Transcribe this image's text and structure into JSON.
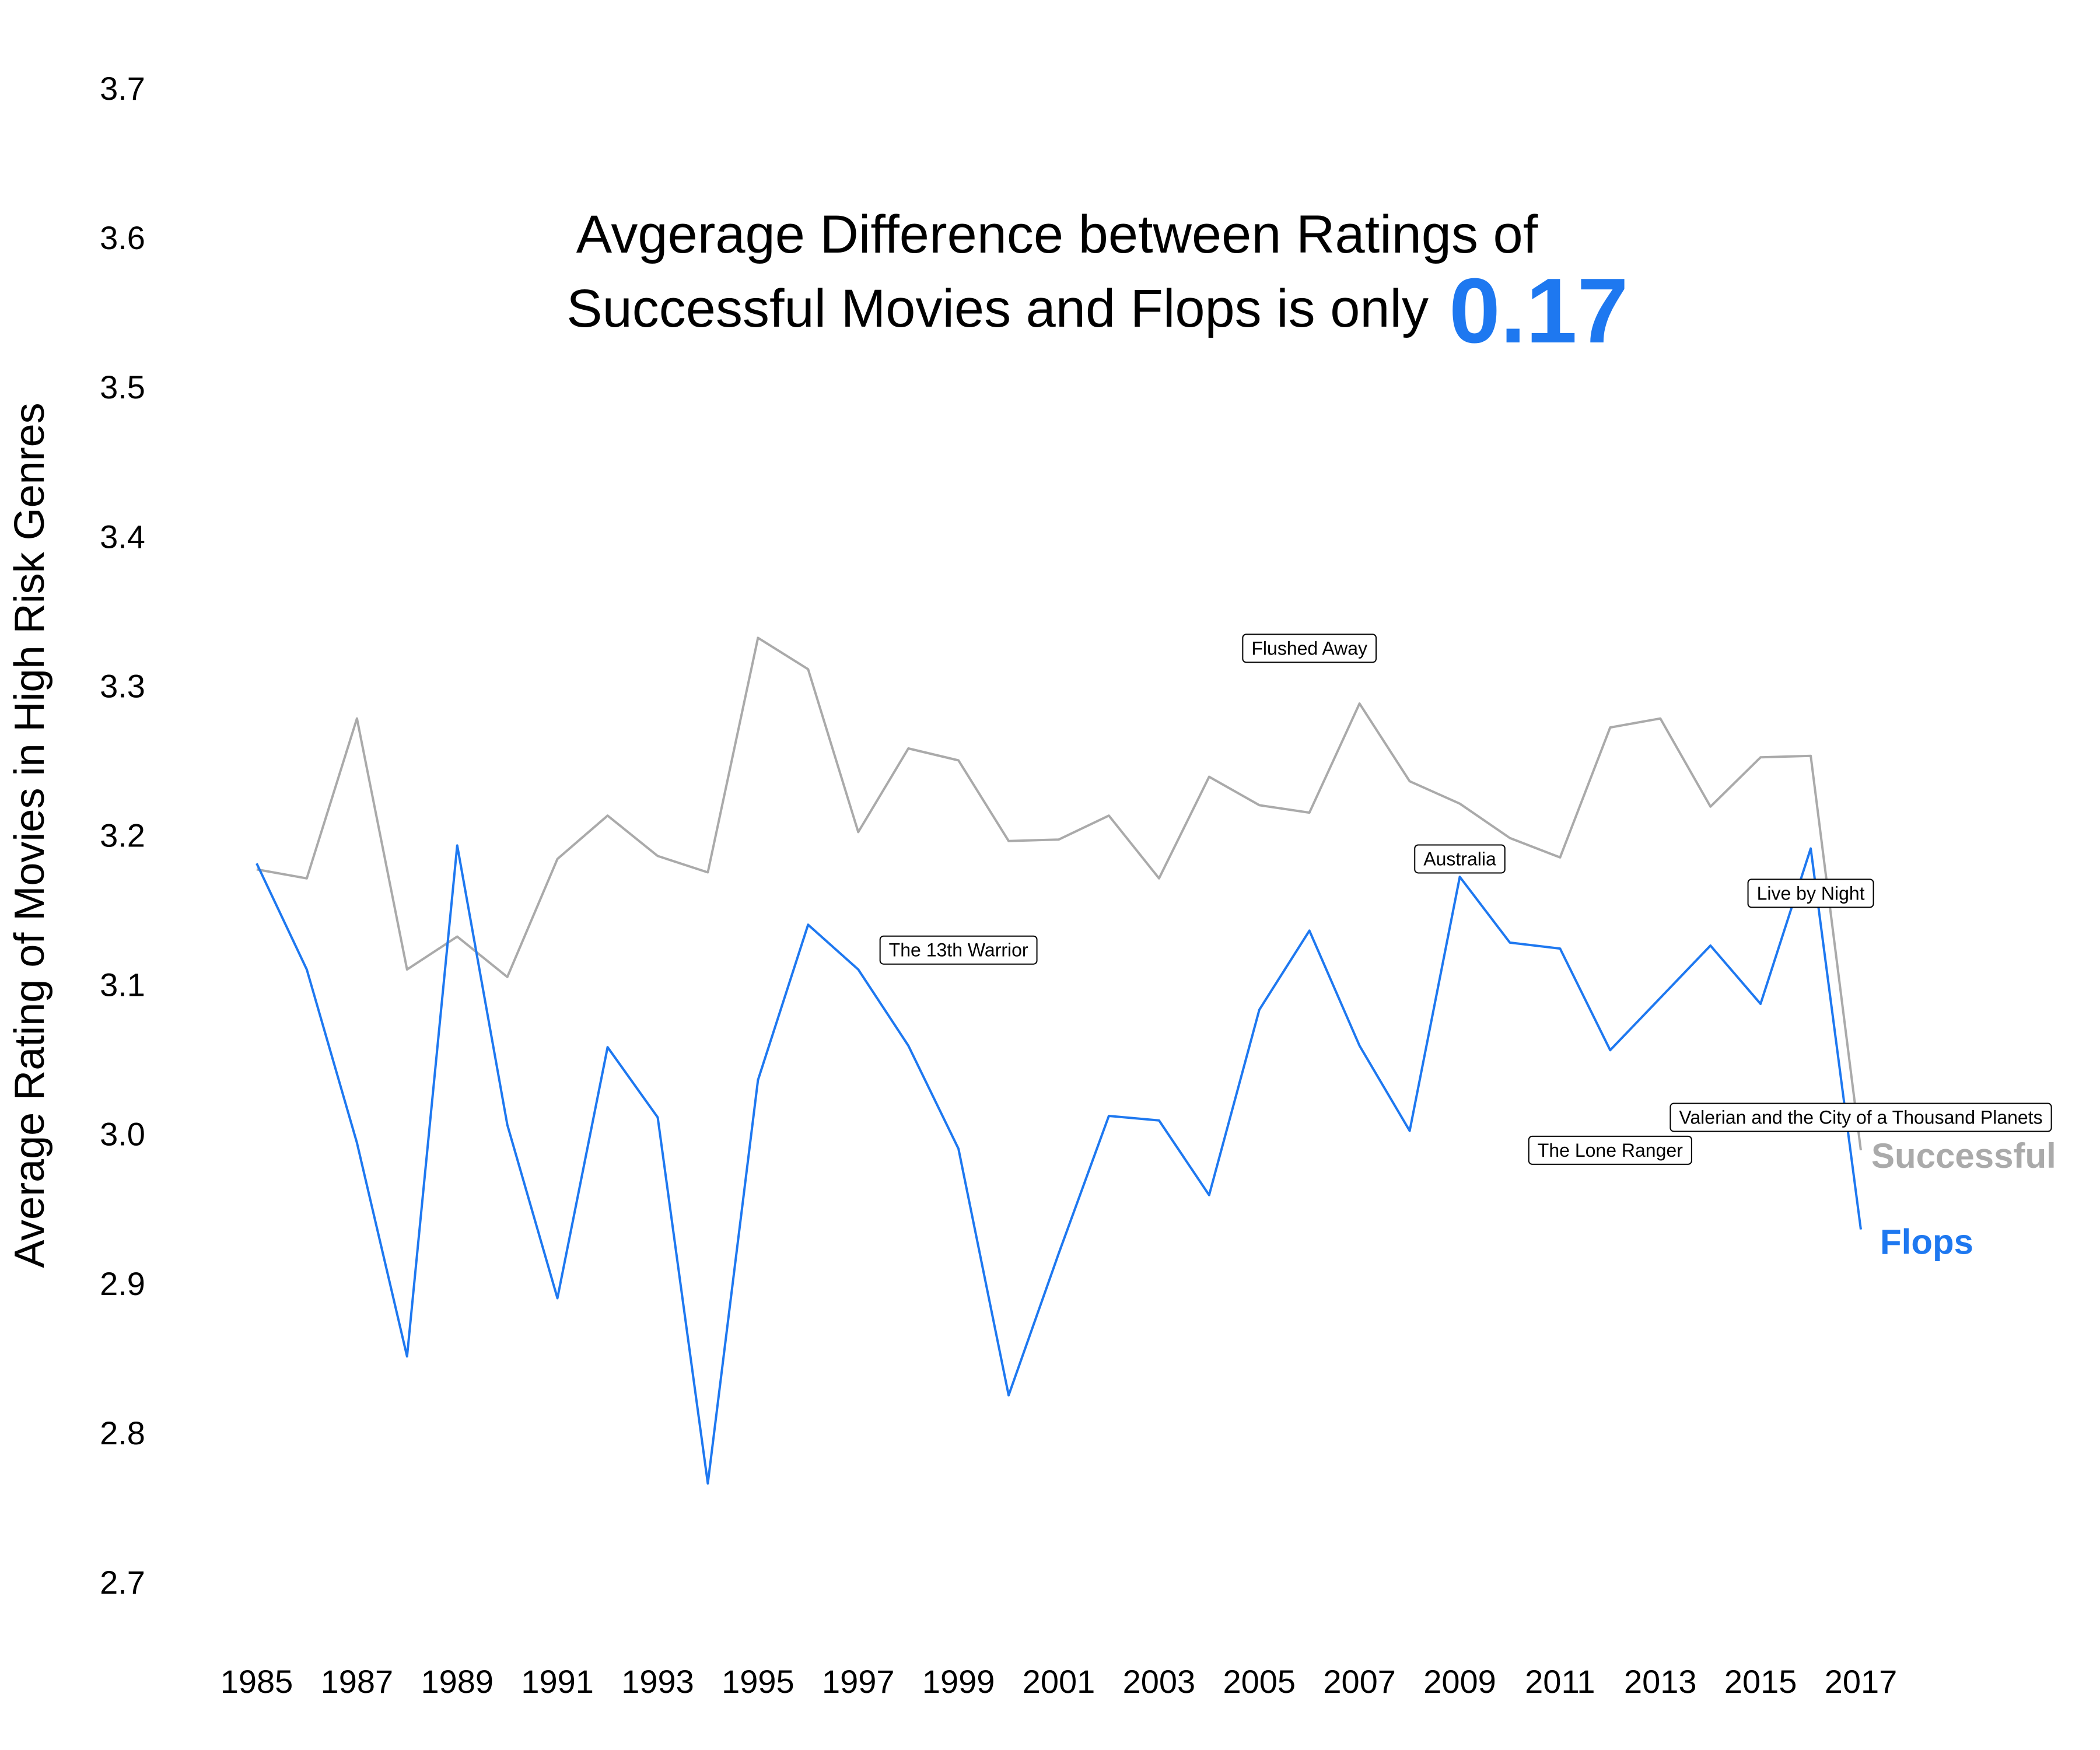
{
  "chart_data": {
    "type": "line",
    "title_lines": [
      "Avgerage Difference between Ratings of",
      "Successful Movies and Flops is only"
    ],
    "title_highlight": "0.17",
    "xlabel": "",
    "ylabel": "Average Rating of Movies in High Risk Genres",
    "xlim": [
      1985,
      2017
    ],
    "ylim": [
      2.7,
      3.7
    ],
    "x_ticks": [
      "1985",
      "1987",
      "1989",
      "1991",
      "1993",
      "1995",
      "1997",
      "1999",
      "2001",
      "2003",
      "2005",
      "2007",
      "2009",
      "2011",
      "2013",
      "2015",
      "2017"
    ],
    "y_ticks": [
      "2.7",
      "2.8",
      "2.9",
      "3.0",
      "3.1",
      "3.2",
      "3.3",
      "3.4",
      "3.5",
      "3.6",
      "3.7"
    ],
    "grid": false,
    "x": [
      1985,
      1986,
      1987,
      1988,
      1989,
      1990,
      1991,
      1992,
      1993,
      1994,
      1995,
      1996,
      1997,
      1998,
      1999,
      2000,
      2001,
      2002,
      2003,
      2004,
      2005,
      2006,
      2007,
      2008,
      2009,
      2010,
      2011,
      2012,
      2013,
      2014,
      2015,
      2016,
      2017
    ],
    "series": [
      {
        "name": "Successful",
        "color": "#aaaaaa",
        "values": [
          3.177,
          3.171,
          3.278,
          3.11,
          3.132,
          3.105,
          3.184,
          3.213,
          3.186,
          3.175,
          3.332,
          3.311,
          3.202,
          3.258,
          3.25,
          3.196,
          3.197,
          3.213,
          3.171,
          3.239,
          3.22,
          3.215,
          3.288,
          3.236,
          3.221,
          3.198,
          3.185,
          3.272,
          3.278,
          3.219,
          3.252,
          3.253,
          2.989
        ]
      },
      {
        "name": "Flops",
        "color": "#1e78f0",
        "values": [
          3.181,
          3.11,
          2.994,
          2.851,
          3.193,
          3.006,
          2.89,
          3.058,
          3.011,
          2.766,
          3.036,
          3.14,
          3.11,
          3.059,
          2.99,
          2.825,
          2.92,
          3.012,
          3.009,
          2.959,
          3.083,
          3.136,
          3.059,
          3.002,
          3.172,
          3.128,
          3.124,
          3.056,
          3.091,
          3.126,
          3.087,
          3.191,
          2.936
        ]
      }
    ],
    "annotations": [
      {
        "text": "Flushed Away",
        "x": 2006,
        "y": 3.325
      },
      {
        "text": "Australia",
        "x": 2009,
        "y": 3.184
      },
      {
        "text": "Live by Night",
        "x": 2016,
        "y": 3.161
      },
      {
        "text": "The 13th Warrior",
        "x": 1999,
        "y": 3.123
      },
      {
        "text": "Valerian and the City of a Thousand Planets",
        "x": 2017,
        "y": 3.011
      },
      {
        "text": "The Lone Ranger",
        "x": 2012,
        "y": 2.989
      }
    ],
    "legend": "direct labels at line ends (right)"
  }
}
